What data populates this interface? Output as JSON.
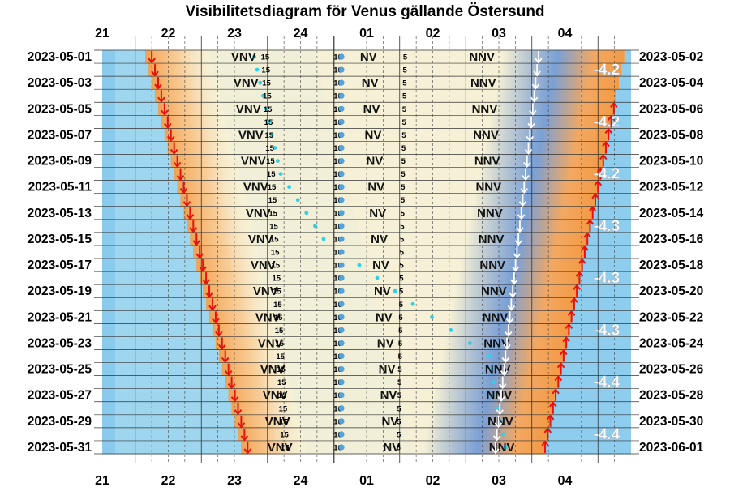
{
  "chart_data": {
    "type": "visibility-diagram",
    "title": "Visibilitetsdiagram för Venus gällande Östersund",
    "hour_ticks": [
      "21",
      "22",
      "23",
      "24",
      "01",
      "02",
      "03",
      "04"
    ],
    "left_dates": [
      "2023-05-01",
      "2023-05-03",
      "2023-05-05",
      "2023-05-07",
      "2023-05-09",
      "2023-05-11",
      "2023-05-13",
      "2023-05-15",
      "2023-05-17",
      "2023-05-19",
      "2023-05-21",
      "2023-05-23",
      "2023-05-25",
      "2023-05-27",
      "2023-05-29",
      "2023-05-31"
    ],
    "right_dates": [
      "2023-05-02",
      "2023-05-04",
      "2023-05-06",
      "2023-05-08",
      "2023-05-10",
      "2023-05-12",
      "2023-05-14",
      "2023-05-16",
      "2023-05-18",
      "2023-05-20",
      "2023-05-22",
      "2023-05-24",
      "2023-05-26",
      "2023-05-28",
      "2023-05-30",
      "2023-06-01"
    ],
    "x_range_hours": [
      20.5,
      28.5
    ],
    "days": 31,
    "sunset_hour": {
      "start": 21.25,
      "end": 22.7
    },
    "sunrise_hour": {
      "start": 4.4,
      "end": 3.2
    },
    "venus_set_hour": {
      "start": 3.1,
      "end": 2.45
    },
    "moon_path_hour": [
      {
        "day": 1,
        "hour": 22.8
      },
      {
        "day": 10,
        "hour": 23.2
      },
      {
        "day": 15,
        "hour": 23.85
      },
      {
        "day": 20,
        "hour": 1.2
      },
      {
        "day": 24,
        "hour": 2.35
      },
      {
        "day": 31,
        "hour": 2.6
      }
    ],
    "direction_labels": [
      "VNV",
      "NV",
      "NNV"
    ],
    "altitude_labels": [
      "15",
      "10",
      "5"
    ],
    "magnitudes": [
      "-4.2",
      "-4.2",
      "-4.2",
      "-4.3",
      "-4.3",
      "-4.3",
      "-4.4",
      "-4.4"
    ]
  }
}
